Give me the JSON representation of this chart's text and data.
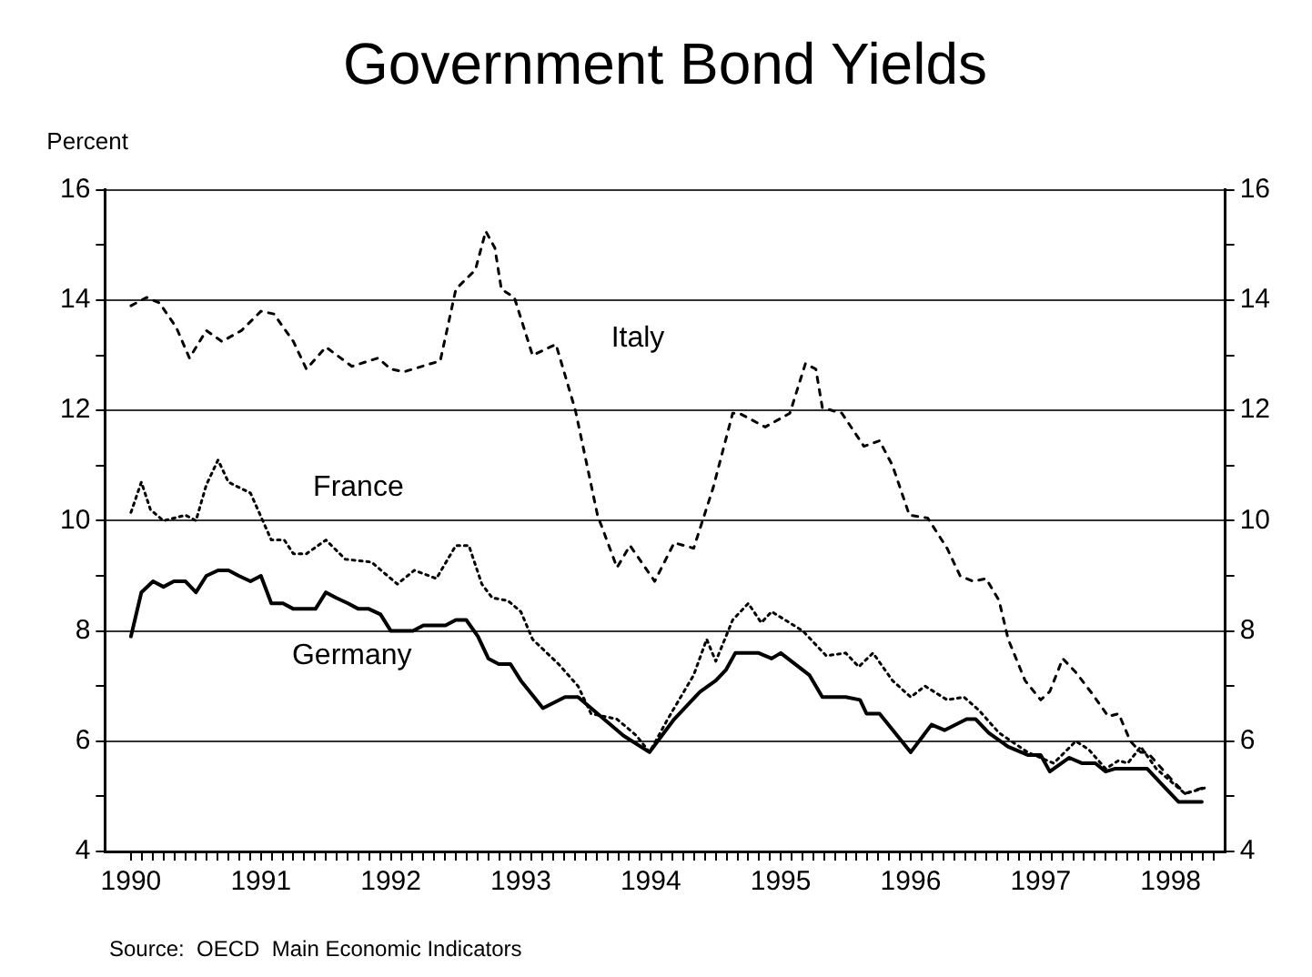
{
  "chart_data": {
    "type": "line",
    "title": "Government Bond Yields",
    "ylabel": "Percent",
    "annotations": [
      "Source:  OECD  Main Economic Indicators"
    ],
    "xlim": [
      1989.8,
      1998.42
    ],
    "xticks": [
      1990,
      {
        "value": 1990.083,
        "label": null
      },
      {
        "value": 1990.167,
        "label": null
      },
      {
        "value": 1990.25,
        "label": null
      },
      {
        "value": 1990.333,
        "label": null
      },
      {
        "value": 1990.417,
        "label": null
      },
      {
        "value": 1990.5,
        "label": null
      },
      {
        "value": 1990.583,
        "label": null
      },
      {
        "value": 1990.667,
        "label": null
      },
      {
        "value": 1990.75,
        "label": null
      },
      {
        "value": 1990.833,
        "label": null
      },
      {
        "value": 1990.917,
        "label": null
      },
      1991,
      {
        "value": 1991.083,
        "label": null
      },
      {
        "value": 1991.167,
        "label": null
      },
      {
        "value": 1991.25,
        "label": null
      },
      {
        "value": 1991.333,
        "label": null
      },
      {
        "value": 1991.417,
        "label": null
      },
      {
        "value": 1991.5,
        "label": null
      },
      {
        "value": 1991.583,
        "label": null
      },
      {
        "value": 1991.667,
        "label": null
      },
      {
        "value": 1991.75,
        "label": null
      },
      {
        "value": 1991.833,
        "label": null
      },
      {
        "value": 1991.917,
        "label": null
      },
      1992,
      {
        "value": 1992.083,
        "label": null
      },
      {
        "value": 1992.167,
        "label": null
      },
      {
        "value": 1992.25,
        "label": null
      },
      {
        "value": 1992.333,
        "label": null
      },
      {
        "value": 1992.417,
        "label": null
      },
      {
        "value": 1992.5,
        "label": null
      },
      {
        "value": 1992.583,
        "label": null
      },
      {
        "value": 1992.667,
        "label": null
      },
      {
        "value": 1992.75,
        "label": null
      },
      {
        "value": 1992.833,
        "label": null
      },
      {
        "value": 1992.917,
        "label": null
      },
      1993,
      {
        "value": 1993.083,
        "label": null
      },
      {
        "value": 1993.167,
        "label": null
      },
      {
        "value": 1993.25,
        "label": null
      },
      {
        "value": 1993.333,
        "label": null
      },
      {
        "value": 1993.417,
        "label": null
      },
      {
        "value": 1993.5,
        "label": null
      },
      {
        "value": 1993.583,
        "label": null
      },
      {
        "value": 1993.667,
        "label": null
      },
      {
        "value": 1993.75,
        "label": null
      },
      {
        "value": 1993.833,
        "label": null
      },
      {
        "value": 1993.917,
        "label": null
      },
      1994,
      {
        "value": 1994.083,
        "label": null
      },
      {
        "value": 1994.167,
        "label": null
      },
      {
        "value": 1994.25,
        "label": null
      },
      {
        "value": 1994.333,
        "label": null
      },
      {
        "value": 1994.417,
        "label": null
      },
      {
        "value": 1994.5,
        "label": null
      },
      {
        "value": 1994.583,
        "label": null
      },
      {
        "value": 1994.667,
        "label": null
      },
      {
        "value": 1994.75,
        "label": null
      },
      {
        "value": 1994.833,
        "label": null
      },
      {
        "value": 1994.917,
        "label": null
      },
      1995,
      {
        "value": 1995.083,
        "label": null
      },
      {
        "value": 1995.167,
        "label": null
      },
      {
        "value": 1995.25,
        "label": null
      },
      {
        "value": 1995.333,
        "label": null
      },
      {
        "value": 1995.417,
        "label": null
      },
      {
        "value": 1995.5,
        "label": null
      },
      {
        "value": 1995.583,
        "label": null
      },
      {
        "value": 1995.667,
        "label": null
      },
      {
        "value": 1995.75,
        "label": null
      },
      {
        "value": 1995.833,
        "label": null
      },
      {
        "value": 1995.917,
        "label": null
      },
      1996,
      {
        "value": 1996.083,
        "label": null
      },
      {
        "value": 1996.167,
        "label": null
      },
      {
        "value": 1996.25,
        "label": null
      },
      {
        "value": 1996.333,
        "label": null
      },
      {
        "value": 1996.417,
        "label": null
      },
      {
        "value": 1996.5,
        "label": null
      },
      {
        "value": 1996.583,
        "label": null
      },
      {
        "value": 1996.667,
        "label": null
      },
      {
        "value": 1996.75,
        "label": null
      },
      {
        "value": 1996.833,
        "label": null
      },
      {
        "value": 1996.917,
        "label": null
      },
      1997,
      {
        "value": 1997.083,
        "label": null
      },
      {
        "value": 1997.167,
        "label": null
      },
      {
        "value": 1997.25,
        "label": null
      },
      {
        "value": 1997.333,
        "label": null
      },
      {
        "value": 1997.417,
        "label": null
      },
      {
        "value": 1997.5,
        "label": null
      },
      {
        "value": 1997.583,
        "label": null
      },
      {
        "value": 1997.667,
        "label": null
      },
      {
        "value": 1997.75,
        "label": null
      },
      {
        "value": 1997.833,
        "label": null
      },
      {
        "value": 1997.917,
        "label": null
      },
      1998,
      {
        "value": 1998.083,
        "label": null
      },
      {
        "value": 1998.167,
        "label": null
      },
      {
        "value": 1998.25,
        "label": null
      },
      {
        "value": 1998.333,
        "label": null
      }
    ],
    "ylim": [
      4,
      16
    ],
    "yticks": [
      4,
      {
        "value": 5,
        "label": null
      },
      6,
      {
        "value": 7,
        "label": null
      },
      8,
      {
        "value": 9,
        "label": null
      },
      10,
      {
        "value": 11,
        "label": null
      },
      12,
      {
        "value": 13,
        "label": null
      },
      14,
      {
        "value": 15,
        "label": null
      },
      16
    ],
    "y2lim": [
      4,
      16
    ],
    "y2ticks": [
      4,
      {
        "value": 5,
        "label": null
      },
      6,
      {
        "value": 7,
        "label": null
      },
      8,
      {
        "value": 9,
        "label": null
      },
      10,
      {
        "value": 11,
        "label": null
      },
      12,
      {
        "value": 13,
        "label": null
      },
      14,
      {
        "value": 15,
        "label": null
      },
      16
    ],
    "grid": "y",
    "legend": false,
    "series": [
      {
        "name": "Italy",
        "color": "#000000",
        "line_style": "dashed",
        "x": [
          1990,
          1990.12,
          1990.22,
          1990.35,
          1990.45,
          1990.58,
          1990.7,
          1990.85,
          1991,
          1991.1,
          1991.25,
          1991.35,
          1991.5,
          1991.7,
          1991.9,
          1992,
          1992.1,
          1992.38,
          1992.5,
          1992.65,
          1992.73,
          1992.8,
          1992.85,
          1992.95,
          1993.09,
          1993.27,
          1993.42,
          1993.59,
          1993.74,
          1993.84,
          1994.03,
          1994.18,
          1994.33,
          1994.48,
          1994.63,
          1994.68,
          1994.88,
          1995.07,
          1995.19,
          1995.27,
          1995.32,
          1995.47,
          1995.64,
          1995.76,
          1995.86,
          1995.99,
          1996.13,
          1996.28,
          1996.38,
          1996.48,
          1996.58,
          1996.68,
          1996.75,
          1996.88,
          1997,
          1997.07,
          1997.17,
          1997.27,
          1997.4,
          1997.52,
          1997.6,
          1997.69,
          1997.77,
          1997.82,
          1997.97,
          1998.11,
          1998.24
        ],
        "values": [
          13.9,
          14.05,
          13.95,
          13.5,
          12.95,
          13.45,
          13.25,
          13.45,
          13.8,
          13.75,
          13.25,
          12.75,
          13.15,
          12.8,
          12.95,
          12.75,
          12.7,
          12.9,
          14.2,
          14.55,
          15.25,
          14.95,
          14.2,
          14.05,
          13,
          13.2,
          12,
          10.1,
          9.15,
          9.55,
          8.9,
          9.6,
          9.5,
          10.6,
          11.95,
          11.95,
          11.7,
          11.95,
          12.85,
          12.75,
          12.05,
          11.95,
          11.35,
          11.45,
          11,
          10.1,
          10.05,
          9.5,
          9,
          8.9,
          8.95,
          8.55,
          7.85,
          7.1,
          6.75,
          6.9,
          7.5,
          7.25,
          6.85,
          6.45,
          6.5,
          6,
          5.8,
          5.8,
          5.4,
          5.05,
          5.15
        ]
      },
      {
        "name": "France",
        "color": "#000000",
        "line_style": "dotted",
        "x": [
          1990,
          1990.08,
          1990.15,
          1990.25,
          1990.42,
          1990.5,
          1990.58,
          1990.67,
          1990.75,
          1990.92,
          1991.08,
          1991.18,
          1991.25,
          1991.35,
          1991.5,
          1991.65,
          1991.85,
          1992.05,
          1992.18,
          1992.35,
          1992.5,
          1992.6,
          1992.7,
          1992.78,
          1992.9,
          1993,
          1993.09,
          1993.29,
          1993.44,
          1993.54,
          1993.74,
          1993.89,
          1993.99,
          1994.13,
          1994.33,
          1994.43,
          1994.5,
          1994.63,
          1994.75,
          1994.85,
          1994.93,
          1995.17,
          1995.35,
          1995.5,
          1995.6,
          1995.71,
          1995.86,
          1996,
          1996.11,
          1996.28,
          1996.41,
          1996.53,
          1996.68,
          1996.9,
          1997.1,
          1997.27,
          1997.37,
          1997.5,
          1997.6,
          1997.67,
          1997.77,
          1997.89,
          1998.11,
          1998.26
        ],
        "values": [
          10.15,
          10.7,
          10.2,
          10,
          10.1,
          10,
          10.65,
          11.1,
          10.7,
          10.5,
          9.65,
          9.65,
          9.4,
          9.4,
          9.65,
          9.3,
          9.25,
          8.85,
          9.1,
          8.95,
          9.55,
          9.55,
          8.85,
          8.6,
          8.55,
          8.35,
          7.85,
          7.4,
          7,
          6.5,
          6.4,
          6.1,
          5.8,
          6.4,
          7.2,
          7.85,
          7.45,
          8.2,
          8.5,
          8.15,
          8.35,
          8,
          7.55,
          7.6,
          7.35,
          7.6,
          7.1,
          6.8,
          7,
          6.75,
          6.8,
          6.55,
          6.15,
          5.8,
          5.6,
          6,
          5.85,
          5.5,
          5.65,
          5.6,
          5.9,
          5.5,
          5.05,
          5.15
        ]
      },
      {
        "name": "Germany",
        "color": "#000000",
        "line_style": "solid",
        "x": [
          1990,
          1990.08,
          1990.17,
          1990.25,
          1990.33,
          1990.42,
          1990.5,
          1990.58,
          1990.67,
          1990.75,
          1990.83,
          1990.92,
          1991,
          1991.08,
          1991.17,
          1991.25,
          1991.33,
          1991.42,
          1991.5,
          1991.58,
          1991.67,
          1991.75,
          1991.83,
          1991.92,
          1992,
          1992.08,
          1992.17,
          1992.25,
          1992.33,
          1992.42,
          1992.5,
          1992.58,
          1992.67,
          1992.75,
          1992.83,
          1992.92,
          1993,
          1993.17,
          1993.34,
          1993.44,
          1993.79,
          1993.99,
          1994.18,
          1994.38,
          1994.5,
          1994.58,
          1994.65,
          1994.83,
          1994.93,
          1995,
          1995.22,
          1995.32,
          1995.5,
          1995.61,
          1995.66,
          1995.76,
          1996,
          1996.16,
          1996.26,
          1996.43,
          1996.5,
          1996.6,
          1996.75,
          1996.9,
          1997,
          1997.07,
          1997.22,
          1997.32,
          1997.42,
          1997.5,
          1997.57,
          1997.82,
          1997.94,
          1998.06,
          1998.24
        ],
        "values": [
          7.9,
          8.7,
          8.9,
          8.8,
          8.9,
          8.9,
          8.7,
          9,
          9.1,
          9.1,
          9,
          8.9,
          9,
          8.5,
          8.5,
          8.4,
          8.4,
          8.4,
          8.7,
          8.6,
          8.5,
          8.4,
          8.4,
          8.3,
          8,
          8,
          8,
          8.1,
          8.1,
          8.1,
          8.2,
          8.2,
          7.9,
          7.5,
          7.4,
          7.4,
          7.1,
          6.6,
          6.8,
          6.8,
          6.1,
          5.8,
          6.4,
          6.9,
          7.1,
          7.3,
          7.6,
          7.6,
          7.5,
          7.6,
          7.2,
          6.8,
          6.8,
          6.75,
          6.5,
          6.5,
          5.8,
          6.3,
          6.2,
          6.4,
          6.4,
          6.15,
          5.9,
          5.75,
          5.75,
          5.45,
          5.7,
          5.6,
          5.6,
          5.45,
          5.5,
          5.5,
          5.2,
          4.9,
          4.9
        ]
      }
    ]
  }
}
